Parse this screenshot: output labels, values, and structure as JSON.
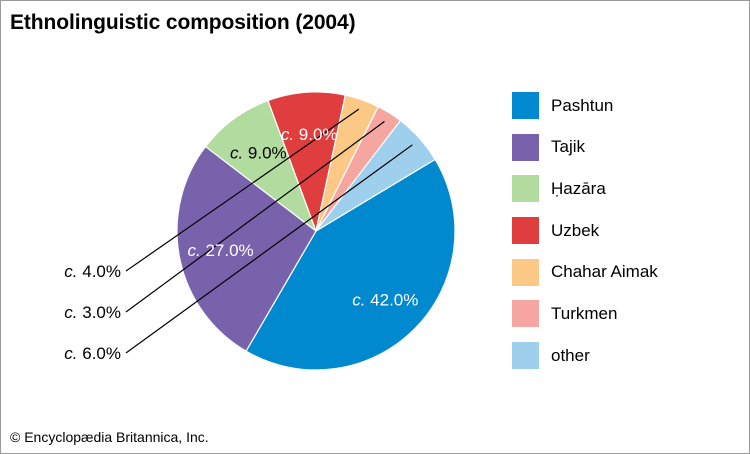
{
  "header": {
    "title": "Ethnolinguistic composition (2004)"
  },
  "footer": {
    "credit": "© Encyclopædia Britannica, Inc."
  },
  "chart_data": {
    "type": "pie",
    "title": "Ethnolinguistic composition (2004)",
    "value_prefix": "c.",
    "unit": "%",
    "slices": [
      {
        "label": "Pashtun",
        "value": 42.0,
        "display": "42.0%",
        "color": "#0089cf",
        "label_color": "#ffffff",
        "label_placement": "inside"
      },
      {
        "label": "Tajik",
        "value": 27.0,
        "display": "27.0%",
        "color": "#7962ac",
        "label_color": "#ffffff",
        "label_placement": "inside"
      },
      {
        "label": "Ḥazāra",
        "value": 9.0,
        "display": "9.0%",
        "color": "#b2dba0",
        "label_color": "#000000",
        "label_placement": "inside"
      },
      {
        "label": "Uzbek",
        "value": 9.0,
        "display": "9.0%",
        "color": "#e03e3e",
        "label_color": "#ffffff",
        "label_placement": "inside"
      },
      {
        "label": "Chahar Aimak",
        "value": 4.0,
        "display": "4.0%",
        "color": "#fbc885",
        "label_color": "#000000",
        "label_placement": "outside"
      },
      {
        "label": "Turkmen",
        "value": 3.0,
        "display": "3.0%",
        "color": "#f5a6a1",
        "label_color": "#000000",
        "label_placement": "outside"
      },
      {
        "label": "other",
        "value": 6.0,
        "display": "6.0%",
        "color": "#9ecfed",
        "label_color": "#000000",
        "label_placement": "outside"
      }
    ],
    "legend": {
      "position": "right",
      "items": [
        "Pashtun",
        "Tajik",
        "Ḥazāra",
        "Uzbek",
        "Chahar Aimak",
        "Turkmen",
        "other"
      ]
    }
  }
}
